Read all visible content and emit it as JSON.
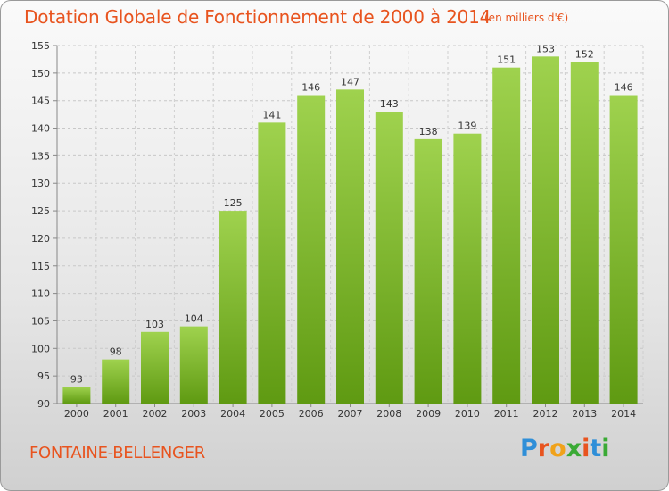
{
  "header": {
    "title": "Dotation Globale de Fonctionnement de 2000 à 2014",
    "unit": "(en milliers d'€)"
  },
  "footer": {
    "commune": "FONTAINE-BELLENGER",
    "logo": "Proxiti"
  },
  "colors": {
    "accent": "#e8541f",
    "bar_light": "#9fd24e",
    "bar_dark": "#5f9a12"
  },
  "chart_data": {
    "type": "bar",
    "title": "Dotation Globale de Fonctionnement de 2000 à 2014",
    "subtitle": "(en milliers d'€)",
    "categories": [
      "2000",
      "2001",
      "2002",
      "2003",
      "2004",
      "2005",
      "2006",
      "2007",
      "2008",
      "2009",
      "2010",
      "2011",
      "2012",
      "2013",
      "2014"
    ],
    "values": [
      93,
      98,
      103,
      104,
      125,
      141,
      146,
      147,
      143,
      138,
      139,
      151,
      153,
      152,
      146
    ],
    "ylim": [
      90,
      155
    ],
    "yticks": [
      90,
      95,
      100,
      105,
      110,
      115,
      120,
      125,
      130,
      135,
      140,
      145,
      150,
      155
    ],
    "grid": true,
    "data_labels": true
  }
}
